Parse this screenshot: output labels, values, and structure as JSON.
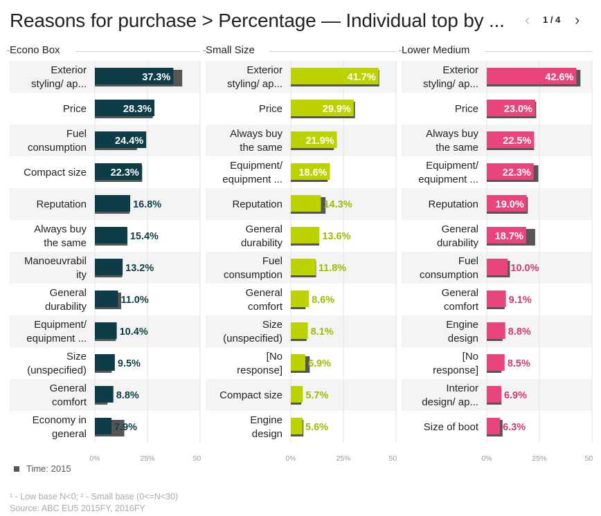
{
  "title": "Reasons for purchase > Percentage — Individual top by ...",
  "pager": {
    "label": "1 / 4",
    "prev_icon": "chevron-left-icon",
    "next_icon": "chevron-right-icon"
  },
  "legend": {
    "label": "Time: 2015",
    "color": "#555555"
  },
  "footnote1": "¹ - Low base N<0;   ² - Small base (0<=N<30)",
  "footnote2": "Source: ABC EU5 2015FY, 2016FY",
  "chart_data": [
    {
      "type": "bar",
      "title": "Econo Box",
      "color": "#0e3d47",
      "label_color": "#0e3d47",
      "comparison_color": "#555555",
      "categories": [
        "Exterior styling/ ap...",
        "Price",
        "Fuel consumption",
        "Compact size",
        "Reputation",
        "Always buy the same",
        "Manoeuvrability",
        "General durability",
        "Equipment/ equipment ...",
        "Size (unspecified)",
        "General comfort",
        "Economy in general"
      ],
      "label_lines": [
        [
          "Exterior",
          "styling/ ap..."
        ],
        [
          "Price"
        ],
        [
          "Fuel",
          "consumption"
        ],
        [
          "Compact size"
        ],
        [
          "Reputation"
        ],
        [
          "Always buy",
          "the same"
        ],
        [
          "Manoeuvrabil",
          "ity"
        ],
        [
          "General",
          "durability"
        ],
        [
          "Equipment/",
          "equipment ..."
        ],
        [
          "Size",
          "(unspecified)"
        ],
        [
          "General",
          "comfort"
        ],
        [
          "Economy in",
          "general"
        ]
      ],
      "values": [
        37.3,
        28.3,
        24.4,
        22.3,
        16.8,
        15.4,
        13.2,
        11.0,
        10.4,
        9.5,
        8.8,
        7.9
      ],
      "value_labels": [
        "37.3%",
        "28.3%",
        "24.4%",
        "22.3%",
        "16.8%",
        "15.4%",
        "13.2%",
        "11.0%",
        "10.4%",
        "9.5%",
        "8.8%",
        "7.9%"
      ],
      "comparison_values": [
        41.5,
        27.5,
        20.0,
        22.5,
        16.5,
        15.5,
        13.0,
        12.5,
        10.0,
        8.0,
        6.0,
        14.0
      ],
      "xlim": [
        0,
        50
      ],
      "ticks": [
        "0%",
        "25%",
        "50%"
      ]
    },
    {
      "type": "bar",
      "title": "Small Size",
      "color": "#bdd300",
      "label_color": "#a3b800",
      "comparison_color": "#555555",
      "categories": [
        "Exterior styling/ ap...",
        "Price",
        "Always buy the same",
        "Equipment/ equipment ...",
        "Reputation",
        "General durability",
        "Fuel consumption",
        "General comfort",
        "Size (unspecified)",
        "[No response]",
        "Compact size",
        "Engine design"
      ],
      "label_lines": [
        [
          "Exterior",
          "styling/ ap..."
        ],
        [
          "Price"
        ],
        [
          "Always buy",
          "the same"
        ],
        [
          "Equipment/",
          "equipment ..."
        ],
        [
          "Reputation"
        ],
        [
          "General",
          "durability"
        ],
        [
          "Fuel",
          "consumption"
        ],
        [
          "General",
          "comfort"
        ],
        [
          "Size",
          "(unspecified)"
        ],
        [
          "[No",
          "response]"
        ],
        [
          "Compact size"
        ],
        [
          "Engine",
          "design"
        ]
      ],
      "values": [
        41.7,
        29.9,
        21.9,
        18.6,
        14.3,
        13.6,
        11.8,
        8.6,
        8.1,
        6.9,
        5.7,
        5.6
      ],
      "value_labels": [
        "41.7%",
        "29.9%",
        "21.9%",
        "18.6%",
        "14.3%",
        "13.6%",
        "11.8%",
        "8.6%",
        "8.1%",
        "6.9%",
        "5.7%",
        "5.6%"
      ],
      "comparison_values": [
        42.0,
        30.5,
        20.5,
        17.5,
        16.5,
        13.5,
        12.0,
        7.0,
        7.5,
        9.0,
        5.0,
        6.0
      ],
      "xlim": [
        0,
        50
      ],
      "ticks": [
        "0%",
        "25%",
        "50%"
      ]
    },
    {
      "type": "bar",
      "title": "Lower Medium",
      "color": "#e8457d",
      "label_color": "#d13a6e",
      "comparison_color": "#555555",
      "categories": [
        "Exterior styling/ ap...",
        "Price",
        "Always buy the same",
        "Equipment/ equipment ...",
        "Reputation",
        "General durability",
        "Fuel consumption",
        "General comfort",
        "Engine design",
        "[No response]",
        "Interior design/ ap...",
        "Size of boot"
      ],
      "label_lines": [
        [
          "Exterior",
          "styling/ ap..."
        ],
        [
          "Price"
        ],
        [
          "Always buy",
          "the same"
        ],
        [
          "Equipment/",
          "equipment ..."
        ],
        [
          "Reputation"
        ],
        [
          "General",
          "durability"
        ],
        [
          "Fuel",
          "consumption"
        ],
        [
          "General",
          "comfort"
        ],
        [
          "Engine",
          "design"
        ],
        [
          "[No",
          "response]"
        ],
        [
          "Interior",
          "design/ ap..."
        ],
        [
          "Size of boot"
        ]
      ],
      "values": [
        42.6,
        23.0,
        22.5,
        22.3,
        19.0,
        18.7,
        10.0,
        9.1,
        8.8,
        8.5,
        6.9,
        6.3
      ],
      "value_labels": [
        "42.6%",
        "23.0%",
        "22.5%",
        "22.3%",
        "19.0%",
        "18.7%",
        "10.0%",
        "9.1%",
        "8.8%",
        "8.5%",
        "6.9%",
        "6.3%"
      ],
      "comparison_values": [
        44.5,
        23.5,
        22.5,
        24.5,
        19.5,
        23.0,
        11.0,
        8.5,
        7.5,
        7.0,
        7.0,
        7.5
      ],
      "xlim": [
        0,
        50
      ],
      "ticks": [
        "0%",
        "25%",
        "50%"
      ]
    }
  ]
}
